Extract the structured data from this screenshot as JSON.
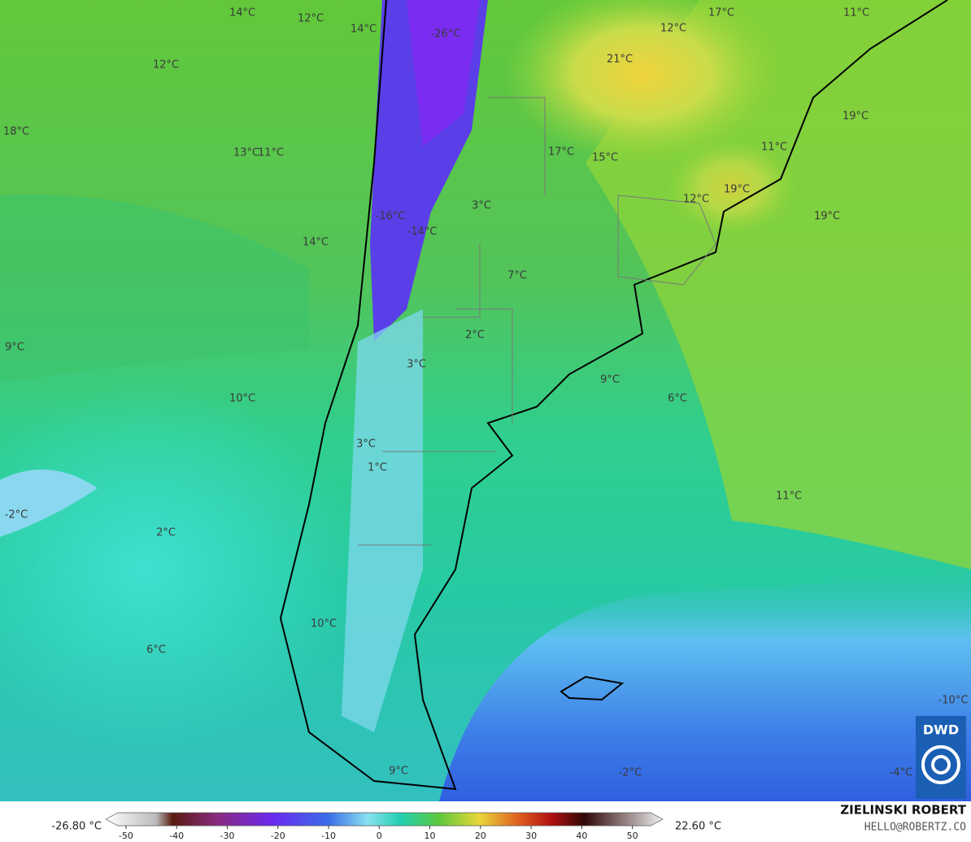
{
  "map": {
    "labels": [
      "14°C",
      "12°C",
      "14°C",
      "-26°C",
      "17°C",
      "12°C",
      "11°C",
      "12°C",
      "21°C",
      "18°C",
      "13°C",
      "11°C",
      "17°C",
      "15°C",
      "19°C",
      "11°C",
      "12°C",
      "19°C",
      "19°C",
      "3°C",
      "-16°C",
      "-14°C",
      "14°C",
      "7°C",
      "9°C",
      "2°C",
      "3°C",
      "9°C",
      "10°C",
      "6°C",
      "3°C",
      "1°C",
      "11°C",
      "-2°C",
      "2°C",
      "10°C",
      "6°C",
      "-10°C",
      "9°C",
      "-2°C",
      "-4°C"
    ]
  },
  "colorbar": {
    "min_label": "-26.80 °C",
    "max_label": "22.60 °C",
    "range": [
      -54,
      56
    ],
    "ticks": [
      -50,
      -40,
      -30,
      -20,
      -10,
      0,
      10,
      20,
      30,
      40,
      50
    ]
  },
  "credit": {
    "author": "ZIELINSKI ROBERT",
    "contact": "HELLO@ROBERTZ.CO",
    "logo": "DWD"
  }
}
